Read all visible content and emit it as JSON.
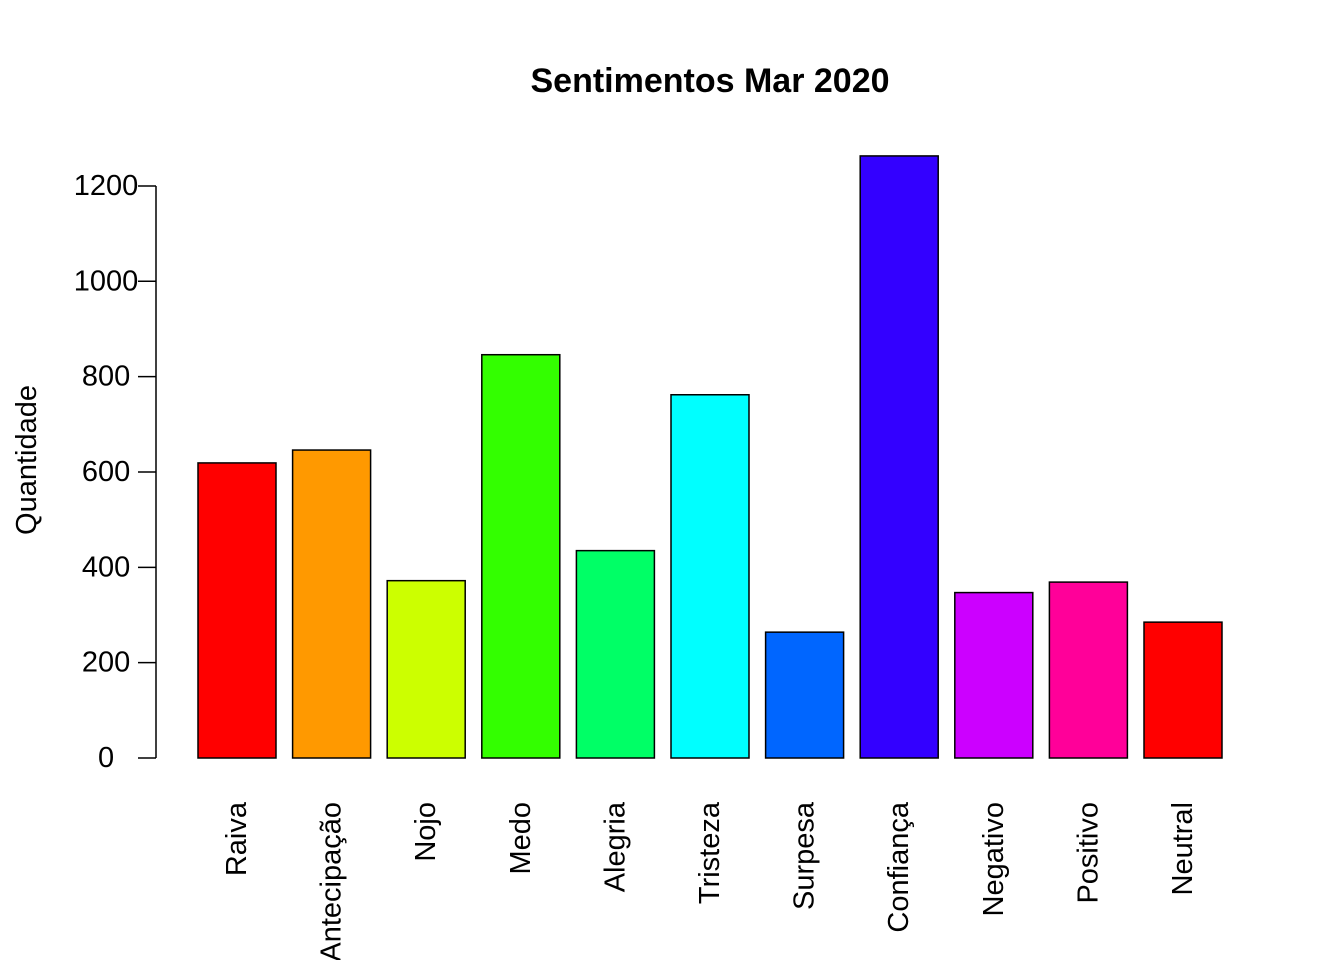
{
  "chart_data": {
    "type": "bar",
    "title": "Sentimentos Mar 2020",
    "xlabel": "",
    "ylabel": "Quantidade",
    "ylim": [
      0,
      1260
    ],
    "yticks": [
      0,
      200,
      400,
      600,
      800,
      1000,
      1200
    ],
    "grid": false,
    "categories": [
      "Raiva",
      "Antecipação",
      "Nojo",
      "Medo",
      "Alegria",
      "Tristeza",
      "Surpesa",
      "Confiança",
      "Negativo",
      "Positivo",
      "Neutral"
    ],
    "values": [
      619,
      646,
      372,
      846,
      435,
      762,
      264,
      1263,
      347,
      369,
      285
    ],
    "colors": [
      "#FF0000",
      "#FF9900",
      "#CCFF00",
      "#33FF00",
      "#00FF66",
      "#00FFFF",
      "#0066FF",
      "#3300FF",
      "#CC00FF",
      "#FF0099",
      "#FF0000"
    ]
  }
}
